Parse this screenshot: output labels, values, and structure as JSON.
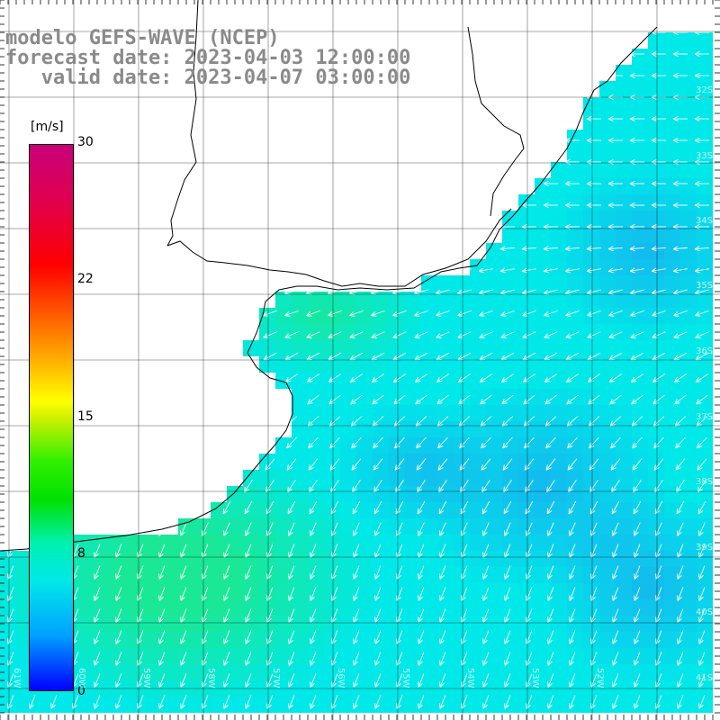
{
  "title": {
    "line1": "modelo GEFS-WAVE (NCEP)",
    "line2": "forecast date: 2023-04-03 12:00:00",
    "line3": "   valid date: 2023-04-07 03:00:00"
  },
  "colorbar": {
    "unit": "[m/s]",
    "ticks": [
      "30",
      "22",
      "15",
      "8",
      "0"
    ],
    "tick_values": [
      30,
      22,
      15,
      8,
      0
    ],
    "colors": [
      "#0000ff",
      "#00e8e8",
      "#00e000",
      "#ffff00",
      "#ff0000",
      "#c8007a"
    ]
  },
  "grid": {
    "lat_labels": [
      "32S",
      "33S",
      "34S",
      "35S",
      "36S",
      "37S",
      "38S",
      "39S",
      "40S",
      "41S"
    ],
    "lon_labels": [
      "61W",
      "60W",
      "59W",
      "58W",
      "57W",
      "56W",
      "55W",
      "54W",
      "53W",
      "52W"
    ]
  },
  "colors": {
    "ocean_cyan": "#00e8e8",
    "ocean_blue": "#18b0f0",
    "ocean_green": "#20e880",
    "land": "#ffffff",
    "gridline": "#000000",
    "arrow": "#ffffff",
    "coast": "#000000",
    "title": "#8a8a8a"
  }
}
